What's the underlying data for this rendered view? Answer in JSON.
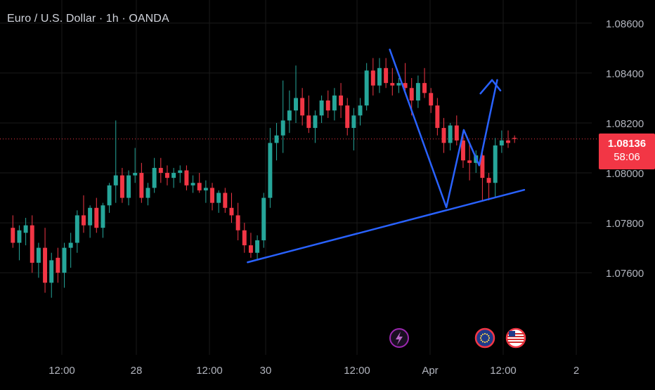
{
  "header": {
    "title": "Euro / U.S. Dollar · 1h · OANDA"
  },
  "price_label": {
    "price": "1.08136",
    "countdown": "58:06",
    "color": "#f23645"
  },
  "colors": {
    "up": "#26a69a",
    "down": "#f23645",
    "drawing": "#2962ff",
    "background": "#000000",
    "axis_text": "#b2b5be"
  },
  "chart_data": {
    "type": "candlestick",
    "symbol": "EURUSD",
    "interval": "1h",
    "y_ticks": [
      "1.08600",
      "1.08400",
      "1.08200",
      "1.08000",
      "1.07800",
      "1.07600"
    ],
    "y_tick_values": [
      1.086,
      1.084,
      1.082,
      1.08,
      1.078,
      1.076
    ],
    "x_ticks": [
      "12:00",
      "28",
      "12:00",
      "30",
      "12:00",
      "Apr",
      "12:00",
      "2"
    ],
    "ylim": [
      1.0744,
      1.0867
    ],
    "last_price": 1.08136,
    "grid": true,
    "candles": [
      [
        1.0778,
        1.0783,
        1.077,
        1.0772
      ],
      [
        1.0772,
        1.0779,
        1.0765,
        1.0777
      ],
      [
        1.0776,
        1.0782,
        1.0771,
        1.0779
      ],
      [
        1.0779,
        1.0783,
        1.076,
        1.0764
      ],
      [
        1.0764,
        1.0772,
        1.0758,
        1.077
      ],
      [
        1.077,
        1.0778,
        1.0752,
        1.0756
      ],
      [
        1.0756,
        1.0768,
        1.075,
        1.0765
      ],
      [
        1.0766,
        1.077,
        1.0756,
        1.076
      ],
      [
        1.076,
        1.0772,
        1.0754,
        1.077
      ],
      [
        1.077,
        1.0776,
        1.0762,
        1.0772
      ],
      [
        1.0772,
        1.0785,
        1.0768,
        1.0783
      ],
      [
        1.0783,
        1.0791,
        1.0776,
        1.0779
      ],
      [
        1.0779,
        1.0787,
        1.0774,
        1.0786
      ],
      [
        1.0786,
        1.079,
        1.0776,
        1.0778
      ],
      [
        1.0778,
        1.0788,
        1.0774,
        1.0787
      ],
      [
        1.0787,
        1.0796,
        1.0784,
        1.0795
      ],
      [
        1.0795,
        1.0821,
        1.0788,
        1.0799
      ],
      [
        1.0799,
        1.0802,
        1.0788,
        1.079
      ],
      [
        1.079,
        1.0801,
        1.0787,
        1.0799
      ],
      [
        1.0799,
        1.081,
        1.0796,
        1.08
      ],
      [
        1.08,
        1.0804,
        1.0788,
        1.079
      ],
      [
        1.079,
        1.0796,
        1.0787,
        1.0794
      ],
      [
        1.0794,
        1.0806,
        1.0792,
        1.0802
      ],
      [
        1.0802,
        1.0806,
        1.0796,
        1.08
      ],
      [
        1.08,
        1.0803,
        1.0795,
        1.0798
      ],
      [
        1.0798,
        1.0802,
        1.0794,
        1.08
      ],
      [
        1.08,
        1.0803,
        1.0796,
        1.0801
      ],
      [
        1.0801,
        1.0803,
        1.0793,
        1.0795
      ],
      [
        1.0795,
        1.0799,
        1.0792,
        1.0796
      ],
      [
        1.0796,
        1.08,
        1.0792,
        1.0793
      ],
      [
        1.0793,
        1.0797,
        1.0788,
        1.0794
      ],
      [
        1.0794,
        1.0796,
        1.0785,
        1.0788
      ],
      [
        1.0788,
        1.0793,
        1.0784,
        1.0792
      ],
      [
        1.0792,
        1.0794,
        1.0784,
        1.0786
      ],
      [
        1.0786,
        1.0792,
        1.078,
        1.0783
      ],
      [
        1.0783,
        1.0788,
        1.0773,
        1.0777
      ],
      [
        1.0777,
        1.078,
        1.0768,
        1.0771
      ],
      [
        1.0771,
        1.0776,
        1.0766,
        1.0768
      ],
      [
        1.0768,
        1.0775,
        1.0765,
        1.0773
      ],
      [
        1.0773,
        1.0792,
        1.077,
        1.079
      ],
      [
        1.079,
        1.0818,
        1.0786,
        1.0812
      ],
      [
        1.0812,
        1.082,
        1.0805,
        1.0815
      ],
      [
        1.0815,
        1.0837,
        1.0808,
        1.0821
      ],
      [
        1.0821,
        1.0833,
        1.0816,
        1.0825
      ],
      [
        1.0825,
        1.0843,
        1.082,
        1.083
      ],
      [
        1.083,
        1.0834,
        1.0819,
        1.0823
      ],
      [
        1.0823,
        1.0831,
        1.0816,
        1.0818
      ],
      [
        1.0818,
        1.0825,
        1.0812,
        1.0823
      ],
      [
        1.0823,
        1.0831,
        1.082,
        1.0829
      ],
      [
        1.0829,
        1.0833,
        1.0822,
        1.0825
      ],
      [
        1.0825,
        1.0834,
        1.0821,
        1.0831
      ],
      [
        1.0831,
        1.0836,
        1.0822,
        1.0827
      ],
      [
        1.0827,
        1.083,
        1.0815,
        1.0818
      ],
      [
        1.0818,
        1.0826,
        1.0809,
        1.0823
      ],
      [
        1.0823,
        1.083,
        1.0819,
        1.0827
      ],
      [
        1.0827,
        1.0844,
        1.0825,
        1.0841
      ],
      [
        1.0841,
        1.0846,
        1.0831,
        1.0835
      ],
      [
        1.0835,
        1.0846,
        1.0832,
        1.0842
      ],
      [
        1.0842,
        1.0846,
        1.0834,
        1.0836
      ],
      [
        1.0836,
        1.0842,
        1.0831,
        1.0835
      ],
      [
        1.0835,
        1.0838,
        1.0832,
        1.0836
      ],
      [
        1.0836,
        1.0844,
        1.0833,
        1.0834
      ],
      [
        1.0834,
        1.0838,
        1.0823,
        1.0829
      ],
      [
        1.0829,
        1.0839,
        1.0826,
        1.0836
      ],
      [
        1.0836,
        1.0842,
        1.083,
        1.0832
      ],
      [
        1.0832,
        1.0834,
        1.0824,
        1.0827
      ],
      [
        1.0827,
        1.083,
        1.0815,
        1.0818
      ],
      [
        1.0818,
        1.0822,
        1.0808,
        1.0812
      ],
      [
        1.0812,
        1.082,
        1.0809,
        1.0819
      ],
      [
        1.0819,
        1.0823,
        1.0811,
        1.0813
      ],
      [
        1.0813,
        1.0816,
        1.0802,
        1.0805
      ],
      [
        1.0805,
        1.0812,
        1.0797,
        1.0804
      ],
      [
        1.0804,
        1.0809,
        1.08,
        1.0807
      ],
      [
        1.0807,
        1.0809,
        1.0789,
        1.0798
      ],
      [
        1.0798,
        1.08,
        1.0789,
        1.0796
      ],
      [
        1.0796,
        1.0814,
        1.079,
        1.0811
      ],
      [
        1.0811,
        1.0817,
        1.0808,
        1.0813
      ],
      [
        1.0813,
        1.0817,
        1.081,
        1.0812
      ],
      [
        1.0814,
        1.0815,
        1.0812,
        1.08136
      ]
    ],
    "x_range": [
      -2,
      90
    ],
    "annotations": [
      {
        "type": "trendline",
        "points": [
          [
            36.5,
            1.07642
          ],
          [
            79.5,
            1.07932
          ]
        ]
      },
      {
        "type": "zigzag",
        "points": [
          [
            58.6,
            1.08494
          ],
          [
            67.4,
            1.07862
          ],
          [
            70.1,
            1.08172
          ],
          [
            72.5,
            1.0803
          ],
          [
            75.3,
            1.08372
          ]
        ]
      },
      {
        "type": "arrowhead",
        "points": [
          [
            72.7,
            1.08318
          ],
          [
            74.5,
            1.08372
          ],
          [
            75.8,
            1.0833
          ]
        ]
      }
    ],
    "events": [
      "lightning-icon",
      "eu-flag-icon",
      "us-flag-icon"
    ]
  }
}
